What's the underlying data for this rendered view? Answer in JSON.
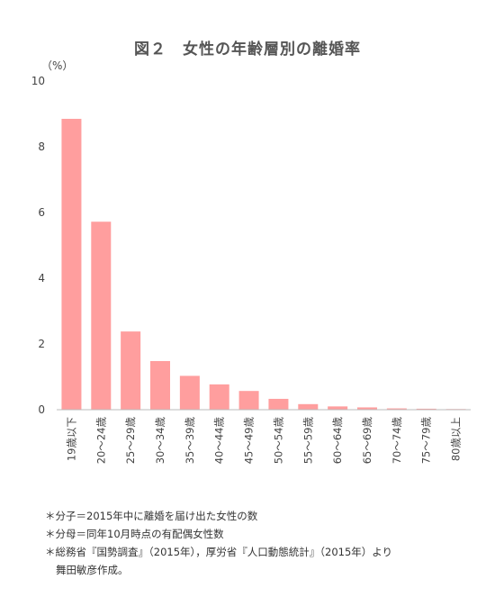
{
  "title": "図２　女性の年齢層別の離婚率",
  "chart_data": {
    "type": "bar",
    "unit": "（%）",
    "categories": [
      "19歳以下",
      "20～24歳",
      "25～29歳",
      "30～34歳",
      "35～39歳",
      "40～44歳",
      "45～49歳",
      "50～54歳",
      "55～59歳",
      "60～64歳",
      "65～69歳",
      "70～74歳",
      "75～79歳",
      "80歳以上"
    ],
    "values": [
      8.85,
      5.72,
      2.38,
      1.48,
      1.03,
      0.77,
      0.57,
      0.33,
      0.17,
      0.1,
      0.07,
      0.04,
      0.03,
      0.02
    ],
    "ylim": [
      0,
      10
    ],
    "yticks": [
      0,
      2,
      4,
      6,
      8,
      10
    ],
    "bar_color": "#ff9e9e",
    "axis_color": "#bbbbbb",
    "grid": false,
    "legend": false
  },
  "notes": [
    "＊分子＝2015年中に離婚を届け出た女性の数",
    "＊分母＝同年10月時点の有配偶女性数",
    "＊総務省『国勢調査』（2015年），厚労省『人口動態統計』（2015年）より",
    "舞田敏彦作成。"
  ]
}
